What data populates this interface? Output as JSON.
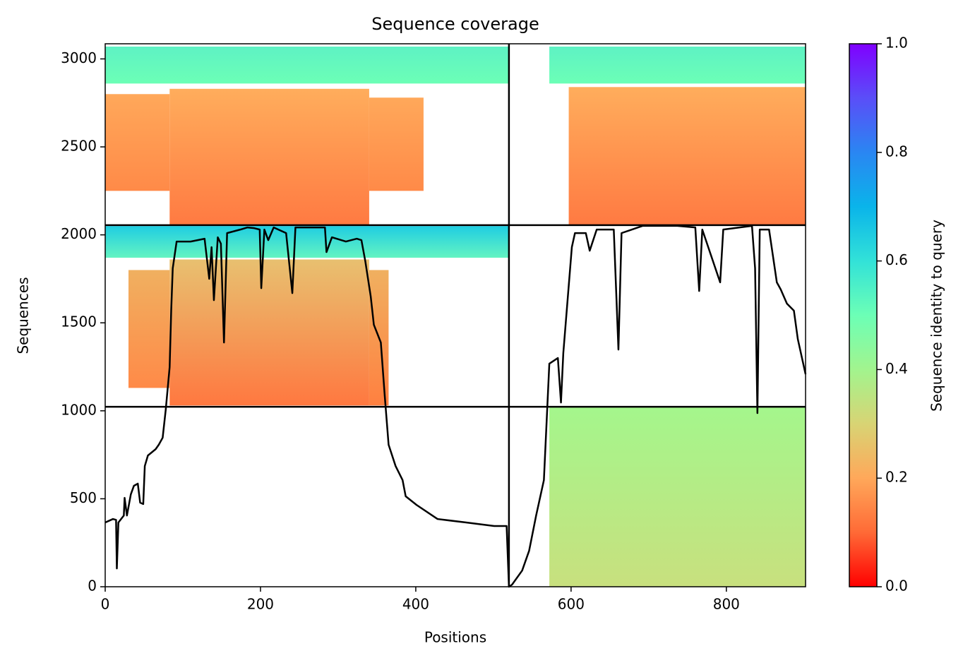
{
  "chart_data": {
    "type": "coverage",
    "title": "Sequence coverage",
    "xlabel": "Positions",
    "ylabel": "Sequences",
    "xlim": [
      0,
      902
    ],
    "ylim": [
      0,
      3086
    ],
    "xticks": [
      0,
      200,
      400,
      600,
      800
    ],
    "yticks": [
      0,
      500,
      1000,
      1500,
      2000,
      2500,
      3000
    ],
    "blocks": [
      {
        "x": [
          0,
          520
        ],
        "y": [
          2860,
          3070
        ],
        "colors": [
          "#5ef2c4",
          "#6cffb6"
        ]
      },
      {
        "x": [
          83,
          340
        ],
        "y": [
          2055,
          2830
        ],
        "colors": [
          "#ffad5c",
          "#ff7a42"
        ]
      },
      {
        "x": [
          0,
          83
        ],
        "y": [
          2250,
          2800
        ],
        "colors": [
          "#ffa85a",
          "#ff8a48"
        ]
      },
      {
        "x": [
          340,
          410
        ],
        "y": [
          2250,
          2780
        ],
        "colors": [
          "#ffa85a",
          "#ff8a48"
        ]
      },
      {
        "x": [
          572,
          902
        ],
        "y": [
          2860,
          3070
        ],
        "colors": [
          "#5ef2c4",
          "#6cffb6"
        ]
      },
      {
        "x": [
          597,
          902
        ],
        "y": [
          2055,
          2840
        ],
        "colors": [
          "#ffad5c",
          "#ff7a42"
        ]
      },
      {
        "x": [
          0,
          520
        ],
        "y": [
          1870,
          2050
        ],
        "colors": [
          "#1fcde2",
          "#64f4c2"
        ]
      },
      {
        "x": [
          83,
          340
        ],
        "y": [
          1030,
          1860
        ],
        "colors": [
          "#e8c070",
          "#ff7840"
        ]
      },
      {
        "x": [
          30,
          83
        ],
        "y": [
          1130,
          1800
        ],
        "colors": [
          "#f0b060",
          "#ff8a48"
        ]
      },
      {
        "x": [
          340,
          365
        ],
        "y": [
          1030,
          1800
        ],
        "colors": [
          "#f0b060",
          "#ff8040"
        ]
      },
      {
        "x": [
          572,
          902
        ],
        "y": [
          0,
          1023
        ],
        "colors": [
          "#a4f68c",
          "#c8e07e"
        ]
      }
    ],
    "dividers": {
      "x": [
        520
      ],
      "y": [
        1023,
        2055
      ]
    },
    "coverage": {
      "color": "#000000",
      "x": [
        0,
        10,
        14,
        15,
        17,
        24,
        25,
        28,
        33,
        37,
        42,
        45,
        49,
        51,
        55,
        65,
        69,
        74,
        78,
        83,
        85,
        87,
        92,
        110,
        128,
        134,
        137,
        140,
        145,
        149,
        153,
        157,
        174,
        183,
        192,
        199,
        201,
        205,
        210,
        217,
        233,
        241,
        245,
        283,
        285,
        292,
        310,
        324,
        330,
        335,
        342,
        346,
        355,
        360,
        365,
        374,
        383,
        387,
        401,
        428,
        465,
        501,
        517,
        520,
        524,
        537,
        546,
        555,
        565,
        572,
        583,
        587,
        590,
        601,
        605,
        619,
        624,
        633,
        655,
        661,
        665,
        692,
        737,
        760,
        765,
        769,
        792,
        796,
        833,
        837,
        840,
        843,
        855,
        865,
        870,
        878,
        887,
        892,
        902
      ],
      "values": [
        365,
        385,
        380,
        104,
        365,
        405,
        505,
        405,
        525,
        574,
        586,
        478,
        470,
        686,
        746,
        782,
        807,
        847,
        1007,
        1248,
        1569,
        1810,
        1962,
        1962,
        1978,
        1750,
        1930,
        1629,
        1986,
        1950,
        1388,
        2010,
        2030,
        2042,
        2038,
        2030,
        1697,
        2030,
        1970,
        2042,
        2010,
        1669,
        2042,
        2042,
        1902,
        1986,
        1962,
        1978,
        1970,
        1850,
        1649,
        1489,
        1388,
        1087,
        807,
        686,
        606,
        514,
        465,
        385,
        365,
        345,
        345,
        0,
        12,
        92,
        205,
        405,
        606,
        1268,
        1300,
        1047,
        1328,
        1930,
        2010,
        2010,
        1910,
        2030,
        2030,
        1348,
        2010,
        2051,
        2051,
        2042,
        1681,
        2030,
        1730,
        2030,
        2051,
        1810,
        987,
        2030,
        2030,
        1730,
        1690,
        1609,
        1569,
        1408,
        1208
      ]
    },
    "colorbar": {
      "label": "Sequence identity to query",
      "lim": [
        0,
        1
      ],
      "colors": [
        "#ff0000",
        "#ff6a36",
        "#ffa85a",
        "#d8d474",
        "#a2f48e",
        "#6cffb6",
        "#32e2d8",
        "#0ab4ea",
        "#2a86f2",
        "#5a4ef8",
        "#8000ff"
      ],
      "ticks": [
        {
          "value": 0,
          "label": "0.0"
        },
        {
          "value": 0.2,
          "label": "0.2"
        },
        {
          "value": 0.4,
          "label": "0.4"
        },
        {
          "value": 0.6,
          "label": "0.6"
        },
        {
          "value": 0.8,
          "label": "0.8"
        },
        {
          "value": 1,
          "label": "1.0"
        }
      ]
    }
  }
}
